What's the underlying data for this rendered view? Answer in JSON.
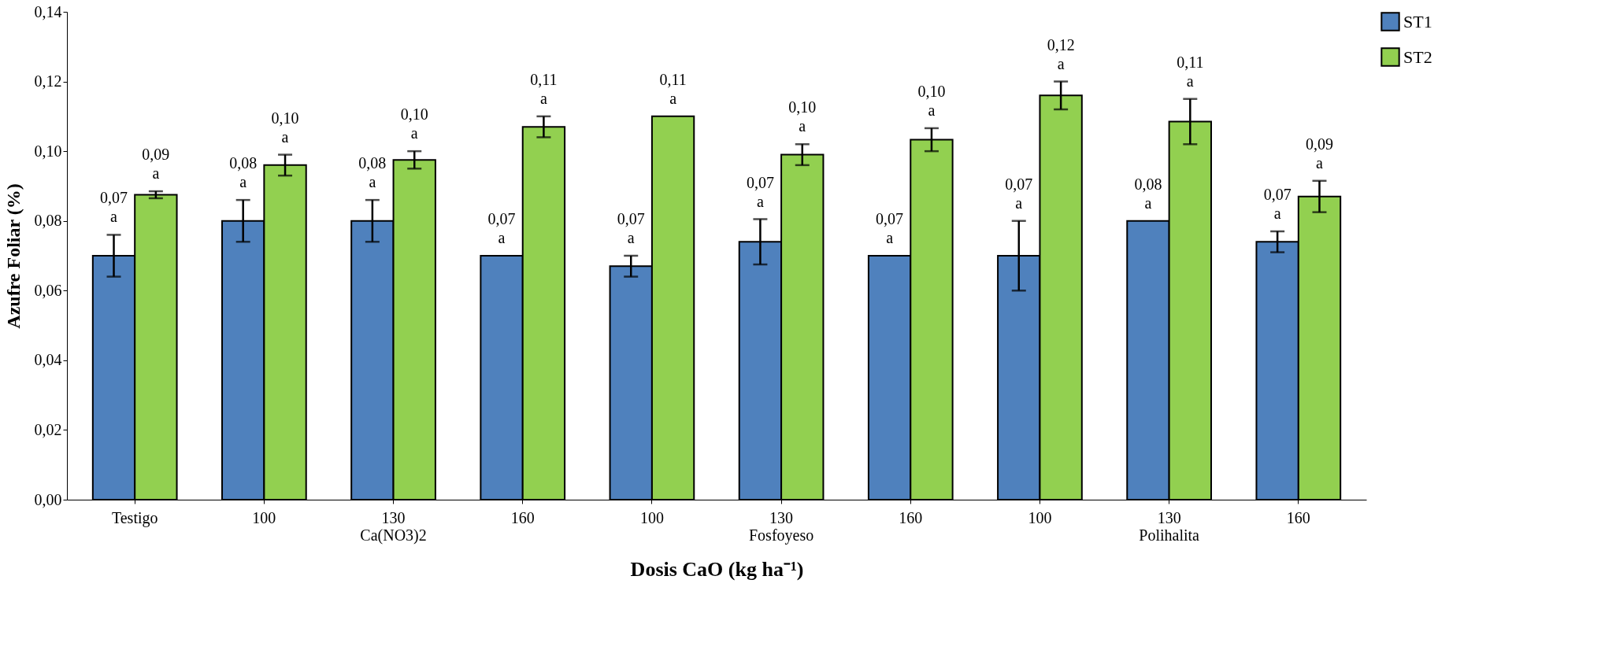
{
  "chart_data": {
    "type": "bar",
    "ylabel": "Azufre Foliar (%)",
    "xlabel": "Dosis CaO (kg ha⁻¹)",
    "categories": [
      "Testigo",
      "100",
      "130\nCa(NO3)2",
      "160",
      "100",
      "130\nFosfoyeso",
      "160",
      "100",
      "130\nPolihalita",
      "160"
    ],
    "series": [
      {
        "name": "ST1",
        "color": "#4f81bd",
        "values": [
          0.07,
          0.08,
          0.08,
          0.07,
          0.067,
          0.074,
          0.07,
          0.07,
          0.08,
          0.074
        ],
        "errors": [
          0.006,
          0.006,
          0.006,
          null,
          0.003,
          0.0065,
          null,
          0.01,
          null,
          0.003
        ],
        "value_labels": [
          "0,07\na",
          "0,08\na",
          "0,08\na",
          "0,07\na",
          "0,07\na",
          "0,07\na",
          "0,07\na",
          "0,07\na",
          "0,08\na",
          "0,07\na"
        ]
      },
      {
        "name": "ST2",
        "color": "#92d050",
        "values": [
          0.0875,
          0.096,
          0.0975,
          0.107,
          0.11,
          0.099,
          0.1033,
          0.116,
          0.1085,
          0.087
        ],
        "errors": [
          0.001,
          0.003,
          0.0025,
          0.003,
          null,
          0.003,
          0.0033,
          0.004,
          0.0065,
          0.0045
        ],
        "value_labels": [
          "0,09\na",
          "0,10\na",
          "0,10\na",
          "0,11\na",
          "0,11\na",
          "0,10\na",
          "0,10\na",
          "0,12\na",
          "0,11\na",
          "0,09\na"
        ]
      }
    ],
    "ylim": [
      0,
      0.14
    ],
    "yticks": [
      {
        "value": 0,
        "label": "0,00"
      },
      {
        "value": 0.02,
        "label": "0,02"
      },
      {
        "value": 0.04,
        "label": "0,04"
      },
      {
        "value": 0.06,
        "label": "0,06"
      },
      {
        "value": 0.08,
        "label": "0,08"
      },
      {
        "value": 0.1,
        "label": "0,10"
      },
      {
        "value": 0.12,
        "label": "0,12"
      },
      {
        "value": 0.14,
        "label": "0,14"
      }
    ],
    "grid": false,
    "legend": "right"
  }
}
